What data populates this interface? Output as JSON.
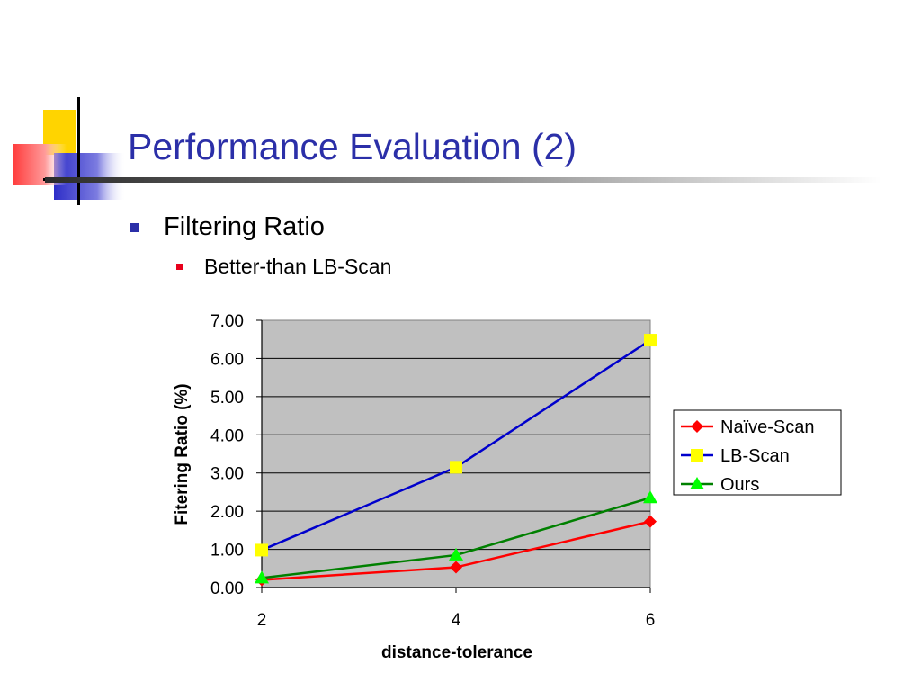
{
  "slide": {
    "title": "Performance Evaluation (2)",
    "bullet": "Filtering Ratio",
    "sub_bullet": "Better-than LB-Scan"
  },
  "colors": {
    "title": "#2b2fa8",
    "plot_bg": "#c0c0c0",
    "naive": "#ff0000",
    "lb": "#0000cc",
    "lb_marker": "#ffff00",
    "ours": "#008000",
    "ours_marker": "#00ff00"
  },
  "chart_data": {
    "type": "line",
    "x": [
      2,
      4,
      6
    ],
    "series": [
      {
        "name": "Naïve-Scan",
        "values": [
          0.2,
          0.53,
          1.73
        ],
        "marker": "diamond"
      },
      {
        "name": "LB-Scan",
        "values": [
          0.98,
          3.15,
          6.48
        ],
        "marker": "square"
      },
      {
        "name": "Ours",
        "values": [
          0.25,
          0.85,
          2.35
        ],
        "marker": "triangle"
      }
    ],
    "xlabel": "distance-tolerance",
    "ylabel": "Fitering Ratio (%)",
    "ylim": [
      0,
      7
    ],
    "yticks": [
      "0.00",
      "1.00",
      "2.00",
      "3.00",
      "4.00",
      "5.00",
      "6.00",
      "7.00"
    ],
    "xticks": [
      "2",
      "4",
      "6"
    ],
    "grid": true,
    "legend": "right"
  }
}
